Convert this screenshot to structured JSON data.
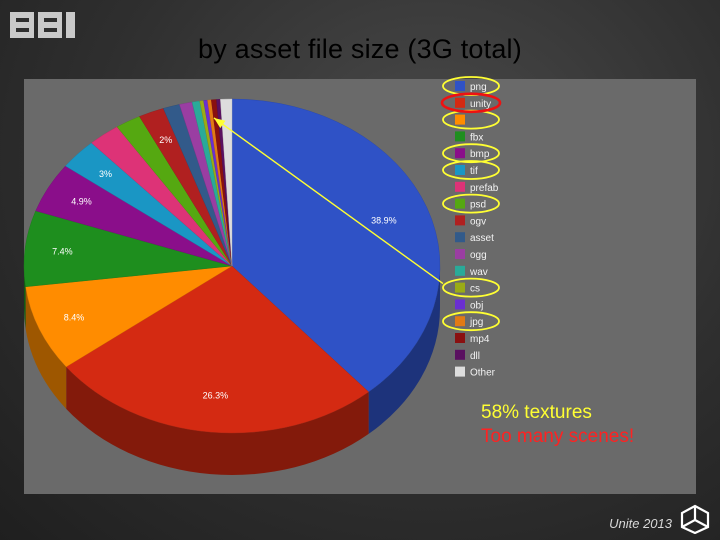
{
  "slide": {
    "logo_text": "BBI",
    "title": "by asset file size (3G total)",
    "footer": "Unite 2013",
    "note_textures": "58% textures",
    "note_scenes": "Too many scenes!"
  },
  "colors": {
    "note_textures": "#ffff33",
    "note_scenes": "#ff2222",
    "highlight_yellow": "#ffff33",
    "highlight_red": "#ee1111"
  },
  "chart_data": {
    "type": "pie",
    "title": "by asset file size (3G total)",
    "style": "3d",
    "legend_position": "right",
    "slices": [
      {
        "label": "png",
        "value": 38.9,
        "color": "#2f52c6",
        "value_label": "38.9%"
      },
      {
        "label": "unity",
        "value": 26.3,
        "color": "#d42a12",
        "value_label": "26.3%"
      },
      {
        "label": "",
        "value": 8.4,
        "color": "#ff8c00",
        "value_label": "8.4%"
      },
      {
        "label": "fbx",
        "value": 7.4,
        "color": "#1e8e1e",
        "value_label": "7.4%"
      },
      {
        "label": "bmp",
        "value": 4.9,
        "color": "#8a0e8a",
        "value_label": "4.9%"
      },
      {
        "label": "tif",
        "value": 3.0,
        "color": "#1a96c4",
        "value_label": "3%"
      },
      {
        "label": "prefab",
        "value": 2.5,
        "color": "#dd3377",
        "value_label": ""
      },
      {
        "label": "psd",
        "value": 2.0,
        "color": "#55a811",
        "value_label": ""
      },
      {
        "label": "ogv",
        "value": 2.0,
        "color": "#b02020",
        "value_label": "2%"
      },
      {
        "label": "asset",
        "value": 1.3,
        "color": "#325a8a",
        "value_label": ""
      },
      {
        "label": "ogg",
        "value": 1.0,
        "color": "#9a3ea2",
        "value_label": ""
      },
      {
        "label": "wav",
        "value": 0.6,
        "color": "#2aaa99",
        "value_label": ""
      },
      {
        "label": "cs",
        "value": 0.3,
        "color": "#9aab16",
        "value_label": ""
      },
      {
        "label": "obj",
        "value": 0.3,
        "color": "#6a2fd2",
        "value_label": ""
      },
      {
        "label": "jpg",
        "value": 0.3,
        "color": "#e27a14",
        "value_label": ""
      },
      {
        "label": "mp4",
        "value": 0.4,
        "color": "#8a1010",
        "value_label": ""
      },
      {
        "label": "dll",
        "value": 0.3,
        "color": "#5a1060",
        "value_label": ""
      },
      {
        "label": "Other",
        "value": 0.9,
        "color": "#dddddd",
        "value_label": ""
      }
    ],
    "highlighted_yellow": [
      "png",
      "",
      "bmp",
      "tif",
      "psd",
      "cs",
      "jpg"
    ],
    "highlighted_red": [
      "unity"
    ]
  }
}
